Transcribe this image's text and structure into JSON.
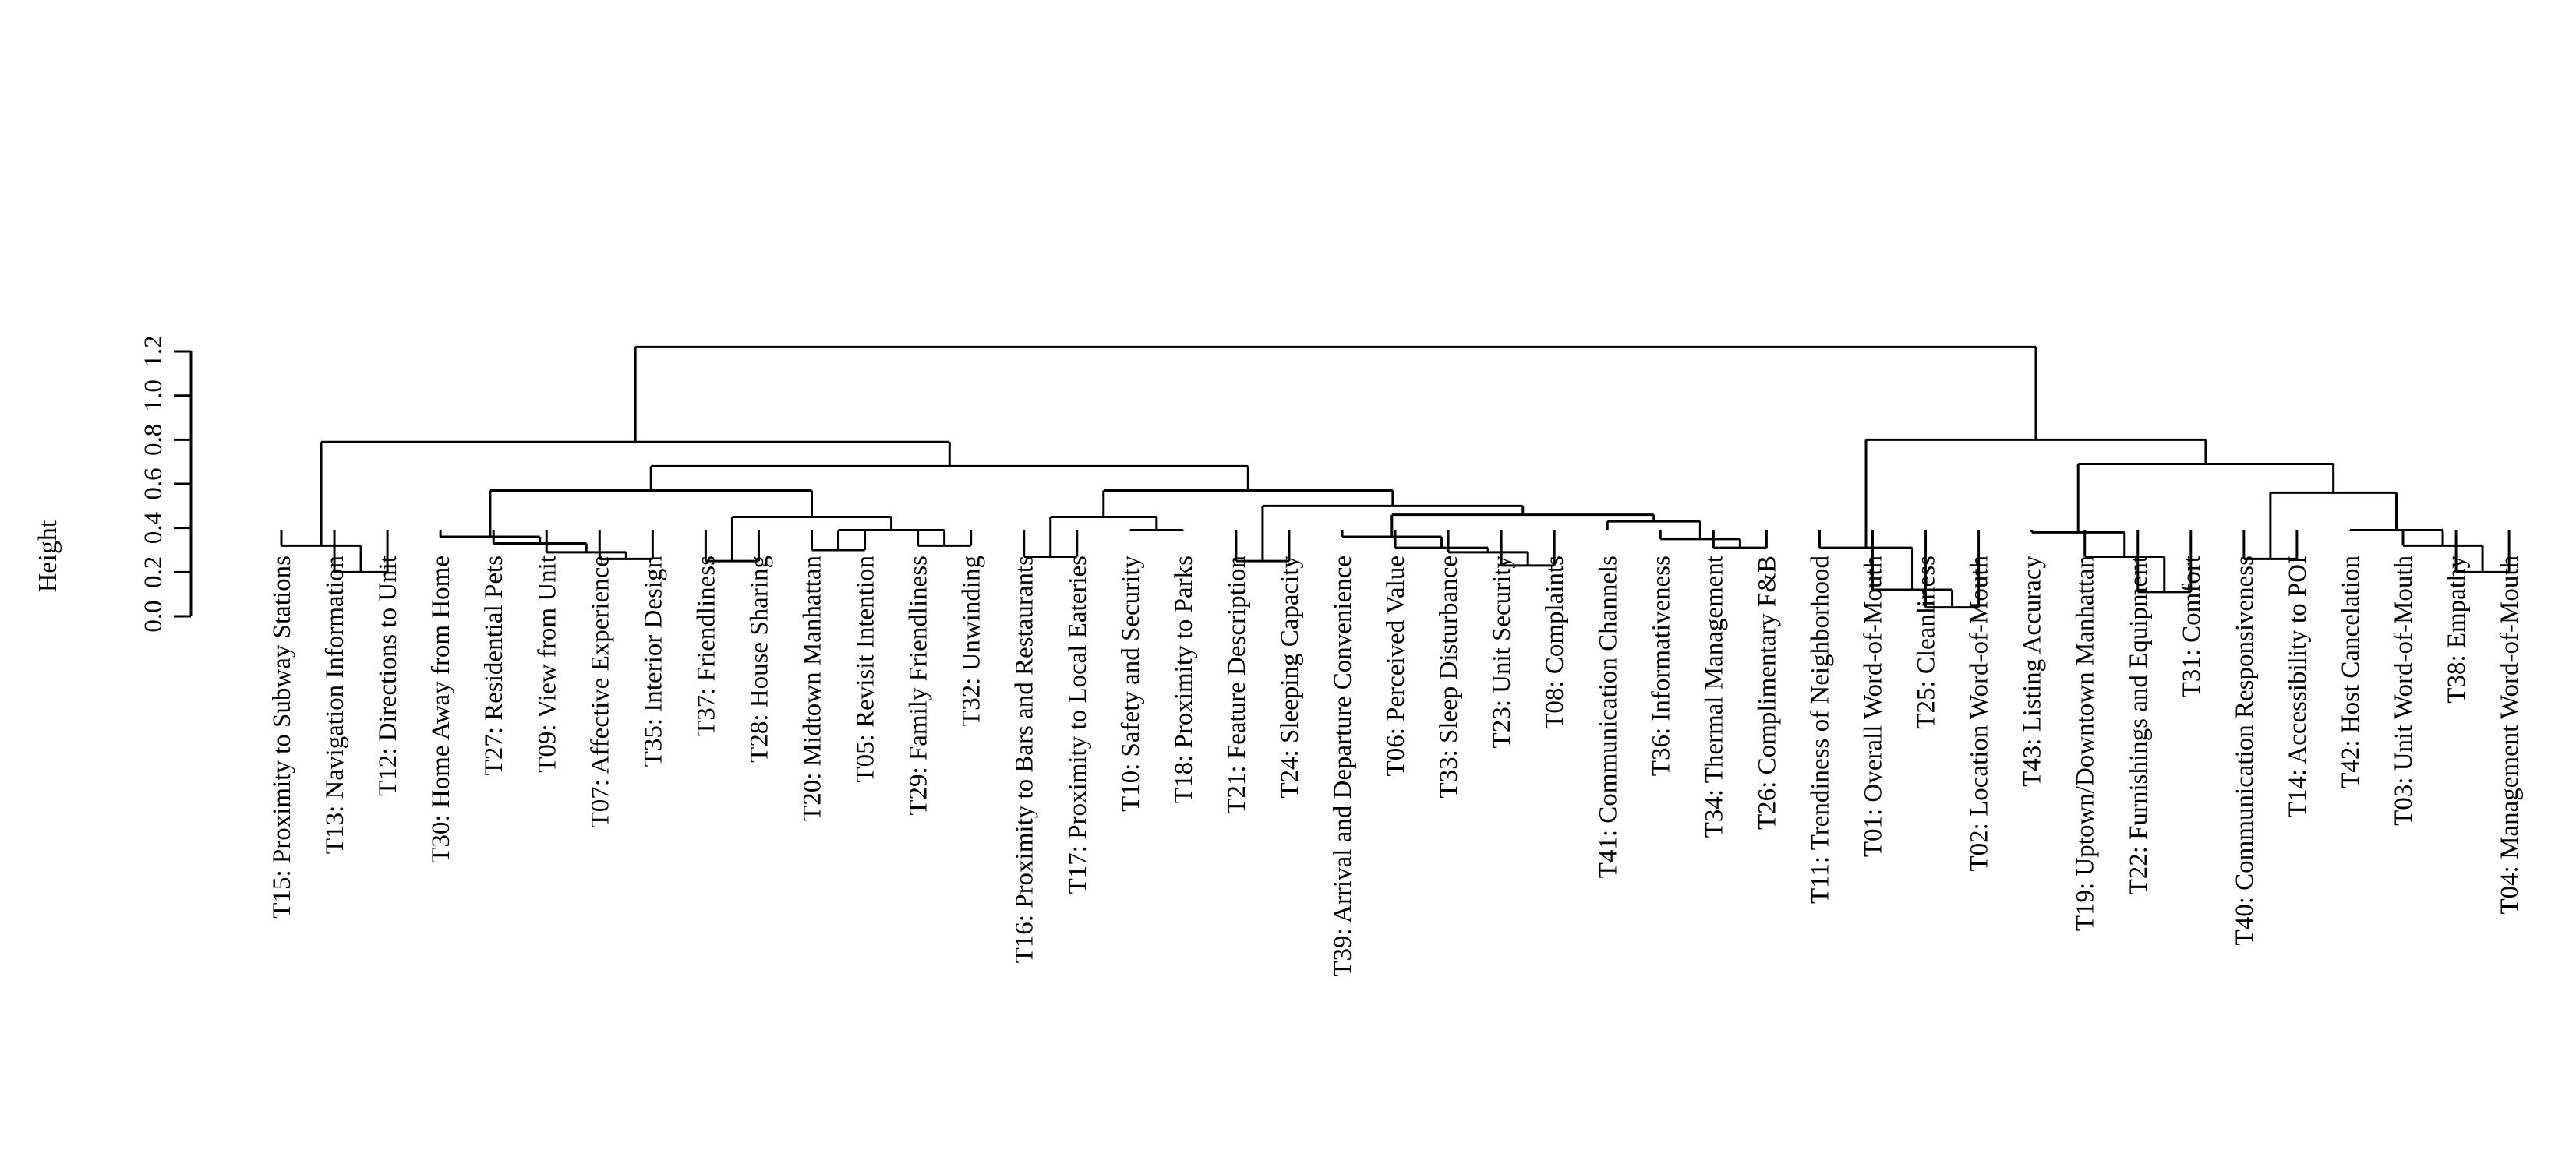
{
  "chart_data": {
    "type": "dendrogram",
    "ylabel": "Height",
    "ylim": [
      0,
      1.2
    ],
    "y_ticks": [
      "0.0",
      "0.2",
      "0.4",
      "0.6",
      "0.8",
      "1.0",
      "1.2"
    ],
    "leaves": [
      "T15: Proximity to Subway Stations",
      "T13: Navigation Information",
      "T12: Directions to Unit",
      "T30: Home Away from Home",
      "T27: Residential Pets",
      "T09: View from Unit",
      "T07: Affective Experience",
      "T35: Interior Design",
      "T37: Friendliness",
      "T28: House Sharing",
      "T20: Midtown Manhattan",
      "T05: Revisit Intention",
      "T29: Family Friendliness",
      "T32: Unwinding",
      "T16: Proximity to Bars and Restaurants",
      "T17: Proximity to Local Eateries",
      "T10: Safety and Security",
      "T18: Proximity to Parks",
      "T21: Feature Description",
      "T24: Sleeping Capacity",
      "T39: Arrival and Departure Convenience",
      "T06: Perceived Value",
      "T33: Sleep Disturbance",
      "T23: Unit Security",
      "T08: Complaints",
      "T41: Communication Channels",
      "T36: Informativeness",
      "T34: Thermal Management",
      "T26: Complimentary F&B",
      "T11: Trendiness of Neighborhood",
      "T01: Overall Word-of-Mouth",
      "T25: Cleanliness",
      "T02: Location Word-of-Mouth",
      "T43: Listing Accuracy",
      "T19: Uptown/Downtown Manhattan",
      "T22: Furnishings and Equipment",
      "T31: Comfort",
      "T40: Communication Responsiveness",
      "T14: Accessibility to POI",
      "T42: Host Cancelation",
      "T03: Unit Word-of-Mouth",
      "T38: Empathy",
      "T04: Management Word-of-Mouth"
    ],
    "merges": [
      {
        "name": "m1",
        "left": 1,
        "right": 2,
        "height": 0.2
      },
      {
        "name": "m2",
        "left": 0,
        "right": "m1",
        "height": 0.32
      },
      {
        "name": "m3",
        "left": 6,
        "right": 7,
        "height": 0.26
      },
      {
        "name": "m4",
        "left": 5,
        "right": "m3",
        "height": 0.29
      },
      {
        "name": "m5",
        "left": 4,
        "right": "m4",
        "height": 0.33
      },
      {
        "name": "m6",
        "left": 3,
        "right": "m5",
        "height": 0.36
      },
      {
        "name": "m7",
        "left": 8,
        "right": 9,
        "height": 0.25
      },
      {
        "name": "m8",
        "left": 10,
        "right": 11,
        "height": 0.3
      },
      {
        "name": "m9",
        "left": 12,
        "right": 13,
        "height": 0.32
      },
      {
        "name": "m10",
        "left": "m8",
        "right": "m9",
        "height": 0.39
      },
      {
        "name": "m11",
        "left": "m7",
        "right": "m10",
        "height": 0.45
      },
      {
        "name": "m12",
        "left": "m6",
        "right": "m11",
        "height": 0.57
      },
      {
        "name": "m13",
        "left": 14,
        "right": 15,
        "height": 0.27
      },
      {
        "name": "m14",
        "left": 16,
        "right": 17,
        "height": 0.39
      },
      {
        "name": "m15",
        "left": "m13",
        "right": "m14",
        "height": 0.45
      },
      {
        "name": "m16",
        "left": 18,
        "right": 19,
        "height": 0.25
      },
      {
        "name": "m17",
        "left": 23,
        "right": 24,
        "height": 0.23
      },
      {
        "name": "m18",
        "left": 22,
        "right": "m17",
        "height": 0.29
      },
      {
        "name": "m19",
        "left": 21,
        "right": "m18",
        "height": 0.31
      },
      {
        "name": "m20",
        "left": 20,
        "right": "m19",
        "height": 0.36
      },
      {
        "name": "m21",
        "left": 27,
        "right": 28,
        "height": 0.31
      },
      {
        "name": "m22",
        "left": 26,
        "right": "m21",
        "height": 0.35
      },
      {
        "name": "m23",
        "left": 25,
        "right": "m22",
        "height": 0.43
      },
      {
        "name": "m24",
        "left": "m20",
        "right": "m23",
        "height": 0.46
      },
      {
        "name": "m25",
        "left": "m16",
        "right": "m24",
        "height": 0.5
      },
      {
        "name": "m26",
        "left": "m15",
        "right": "m25",
        "height": 0.57
      },
      {
        "name": "m27",
        "left": "m12",
        "right": "m26",
        "height": 0.68
      },
      {
        "name": "m28",
        "left": "m2",
        "right": "m27",
        "height": 0.79
      },
      {
        "name": "m29",
        "left": 31,
        "right": 32,
        "height": 0.04
      },
      {
        "name": "m30",
        "left": 30,
        "right": "m29",
        "height": 0.12
      },
      {
        "name": "m31",
        "left": 29,
        "right": "m30",
        "height": 0.31
      },
      {
        "name": "m32",
        "left": 35,
        "right": 36,
        "height": 0.11
      },
      {
        "name": "m33",
        "left": 34,
        "right": "m32",
        "height": 0.27
      },
      {
        "name": "m34",
        "left": 33,
        "right": "m33",
        "height": 0.38
      },
      {
        "name": "m35",
        "left": 37,
        "right": 38,
        "height": 0.26
      },
      {
        "name": "m36",
        "left": 41,
        "right": 42,
        "height": 0.2
      },
      {
        "name": "m37",
        "left": 40,
        "right": "m36",
        "height": 0.32
      },
      {
        "name": "m38",
        "left": 39,
        "right": "m37",
        "height": 0.39
      },
      {
        "name": "m39",
        "left": "m35",
        "right": "m38",
        "height": 0.56
      },
      {
        "name": "m40",
        "left": "m34",
        "right": "m39",
        "height": 0.69
      },
      {
        "name": "m41",
        "left": "m31",
        "right": "m40",
        "height": 0.8
      },
      {
        "name": "m42",
        "left": "m28",
        "right": "m41",
        "height": 1.22
      }
    ]
  }
}
